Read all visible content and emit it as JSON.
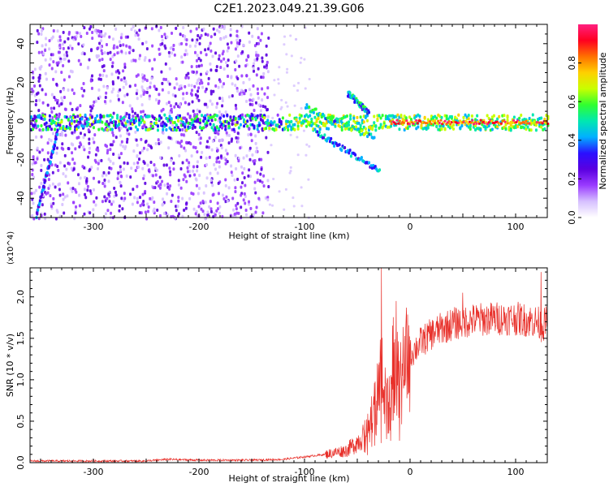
{
  "title": "C2E1.2023.049.21.39.G06",
  "chart_data": [
    {
      "type": "heatmap",
      "title": "C2E1.2023.049.21.39.G06",
      "xlabel": "Height of straight line (km)",
      "ylabel": "Frequency (Hz)",
      "xlim": [
        -360,
        130
      ],
      "ylim": [
        -50,
        50
      ],
      "xticks": [
        -300,
        -200,
        -100,
        0,
        100
      ],
      "yticks": [
        -40,
        -20,
        0,
        20,
        40
      ],
      "colorbar": {
        "label": "Normalized spectral amplitude",
        "range": [
          0,
          1
        ],
        "ticks": [
          "0.0",
          "0.2",
          "0.4",
          "0.6",
          "0.8"
        ],
        "colormap": [
          "#ffffff",
          "#d6c0ff",
          "#9a3cff",
          "#5a00e0",
          "#2a10ff",
          "#00b0ff",
          "#00e8b0",
          "#30ff30",
          "#c8ff00",
          "#ffd000",
          "#ff7000",
          "#ff0020",
          "#ff2080"
        ]
      },
      "features": [
        {
          "name": "noise region",
          "x": [
            -360,
            -135
          ],
          "y": [
            -50,
            50
          ],
          "level": 0.2
        },
        {
          "name": "carrier line",
          "x": [
            -360,
            130
          ],
          "y": [
            -2,
            2
          ],
          "level": 0.6
        },
        {
          "name": "carrier peak",
          "x": [
            -20,
            130
          ],
          "y": [
            -1,
            1
          ],
          "level": 0.95
        },
        {
          "name": "upper branch",
          "x": [
            -100,
            -35
          ],
          "y": [
            8,
            -8
          ],
          "level": 0.55
        },
        {
          "name": "lower branch",
          "x": [
            -90,
            -30
          ],
          "y": [
            -5,
            -25
          ],
          "level": 0.4
        },
        {
          "name": "short branch",
          "x": [
            -60,
            -40
          ],
          "y": [
            15,
            5
          ],
          "level": 0.45
        },
        {
          "name": "oblique streak",
          "x": [
            -355,
            -335
          ],
          "y": [
            -48,
            -5
          ],
          "level": 0.35
        }
      ]
    },
    {
      "type": "line",
      "xlabel": "Height of straight line (km)",
      "ylabel": "SNR (10 * v/v)",
      "multiplier": "(x10^4)",
      "xlim": [
        -360,
        130
      ],
      "ylim": [
        0,
        2.35
      ],
      "xticks": [
        -300,
        -200,
        -100,
        0,
        100
      ],
      "yticks": [
        "0.0",
        "0.5",
        "1.0",
        "1.5",
        "2.0"
      ],
      "color": "#e8302a",
      "series": [
        {
          "x": [
            -360,
            -300,
            -250,
            -230,
            -200,
            -150,
            -120,
            -100,
            -80,
            -60,
            -50,
            -40,
            -35,
            -30,
            -25,
            -22,
            -20,
            -18,
            -15,
            -10,
            -5,
            0,
            10,
            20,
            30,
            40,
            50,
            60,
            80,
            100,
            110,
            120,
            125,
            130
          ],
          "y": [
            0.02,
            0.02,
            0.02,
            0.04,
            0.03,
            0.03,
            0.04,
            0.07,
            0.1,
            0.15,
            0.25,
            0.4,
            0.6,
            0.9,
            1.3,
            0.8,
            0.7,
            1.0,
            1.2,
            1.1,
            1.2,
            1.3,
            1.45,
            1.55,
            1.62,
            1.67,
            1.7,
            1.72,
            1.74,
            1.74,
            1.72,
            1.7,
            1.65,
            1.7
          ],
          "spikes": [
            {
              "x": -27,
              "y": 2.35
            },
            {
              "x": -13,
              "y": 1.95
            },
            {
              "x": 50,
              "y": 2.05
            },
            {
              "x": 124,
              "y": 2.3
            }
          ]
        }
      ]
    }
  ]
}
